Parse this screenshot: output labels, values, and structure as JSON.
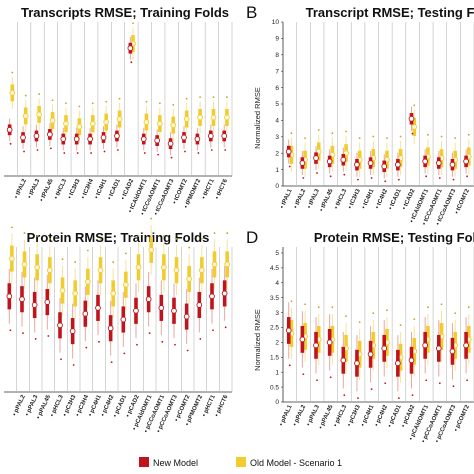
{
  "colors": {
    "new": "#c0141c",
    "old": "#f2cc2f",
    "newLight": "#e9a6a0",
    "oldLight": "#f7e39a",
    "grid": "#b8b8b8"
  },
  "legend": {
    "new_label": "New Model",
    "old_label": "Old Model - Scenario 1"
  },
  "panels": [
    {
      "letter": "",
      "title": "Transcripts RMSE; Training Folds",
      "ylabel": "",
      "ylim": [
        0,
        10
      ],
      "show_yticks": false,
      "categories": [
        "",
        "tPAL2",
        "tPAL3",
        "tPAL45",
        "tHCL3",
        "tC3H3",
        "tC3H4",
        "tC4H1",
        "tCAD1",
        "tCAD2",
        "tCAldOMT1",
        "tCCoAOMT1",
        "tCCoAOMT3",
        "tCOMT2",
        "tPMOMT2",
        "tHCT1",
        "tHCT6"
      ],
      "new_median": [
        3.0,
        2.5,
        2.6,
        2.7,
        2.4,
        2.4,
        2.4,
        2.5,
        2.6,
        8.3,
        2.4,
        2.3,
        2.1,
        2.5,
        2.4,
        2.6,
        2.6
      ],
      "old_median": [
        5.4,
        3.9,
        4.0,
        3.6,
        3.4,
        3.2,
        3.4,
        3.5,
        3.7,
        8.6,
        3.5,
        3.4,
        3.3,
        3.7,
        3.8,
        3.8,
        3.8
      ]
    },
    {
      "letter": "B",
      "title": "Transcript RMSE; Testing F",
      "ylabel": "Normalized RMSE",
      "ylim": [
        0,
        10
      ],
      "show_yticks": true,
      "yticks": [
        0,
        1,
        2,
        3,
        4,
        5,
        6,
        7,
        8,
        9,
        10
      ],
      "categories": [
        "tPAL1",
        "tPAL2",
        "tPAL3",
        "tPAL45",
        "tHCL3",
        "tC3H3",
        "tC4H1",
        "tC4H2",
        "tCAD1",
        "tCAD2",
        "tCAldOMT1",
        "tCCoAOMT1",
        "tCCoAOMT3",
        "tCOMT2"
      ],
      "new_median": [
        2.1,
        1.4,
        1.7,
        1.5,
        1.6,
        1.3,
        1.4,
        1.2,
        1.3,
        4.1,
        1.5,
        1.4,
        1.3,
        1.5
      ],
      "old_median": [
        1.9,
        1.6,
        2.1,
        1.9,
        2.0,
        1.6,
        1.7,
        1.6,
        1.7,
        3.6,
        1.8,
        1.7,
        1.6,
        1.8
      ]
    },
    {
      "letter": "",
      "title": "Protein RMSE; Training Folds",
      "ylabel": "",
      "ylim": [
        0,
        5
      ],
      "show_yticks": false,
      "categories": [
        "",
        "pPAL2",
        "pPAL3",
        "pPAL45",
        "pHCL3",
        "pC3H3",
        "pC3H4",
        "pC4H1",
        "pC4H2",
        "pCAD1",
        "pCAD2",
        "pCAldOMT1",
        "pCCoAOMT1",
        "pCCoAOMT3",
        "pCOMT2",
        "pPMOMT2",
        "pHCT1",
        "pHCT6"
      ],
      "new_median": [
        3.3,
        3.2,
        3.0,
        3.1,
        2.3,
        2.1,
        2.7,
        2.9,
        2.2,
        2.5,
        2.8,
        3.2,
        2.9,
        2.8,
        2.6,
        3.0,
        3.3,
        3.4
      ],
      "old_median": [
        4.6,
        4.4,
        4.3,
        4.2,
        3.5,
        3.4,
        3.8,
        4.2,
        3.4,
        3.7,
        4.3,
        4.9,
        4.3,
        4.2,
        3.9,
        4.2,
        4.4,
        4.4
      ]
    },
    {
      "letter": "D",
      "title": "Protein RMSE; Testing Fol",
      "ylabel": "Normalized RMSE",
      "ylim": [
        0,
        5.2
      ],
      "show_yticks": true,
      "yticks": [
        0,
        0.5,
        1,
        1.5,
        2,
        2.5,
        3,
        3.5,
        4,
        4.5,
        5
      ],
      "categories": [
        "pPAL1",
        "pPAL2",
        "pPAL3",
        "pPAL45",
        "pHCL3",
        "pC3H3",
        "pC4H1",
        "pC4H2",
        "pCAD1",
        "pCAD2",
        "pCAldOMT1",
        "pCCoAOMT1",
        "pCCoAOMT3",
        "pCOMT2"
      ],
      "new_median": [
        2.4,
        2.1,
        1.9,
        2.0,
        1.4,
        1.3,
        1.6,
        1.8,
        1.3,
        1.4,
        1.9,
        1.8,
        1.7,
        1.9
      ],
      "old_median": [
        2.3,
        2.2,
        2.1,
        2.1,
        1.8,
        1.6,
        1.9,
        2.0,
        1.5,
        1.7,
        2.1,
        2.2,
        1.9,
        2.1
      ]
    }
  ]
}
